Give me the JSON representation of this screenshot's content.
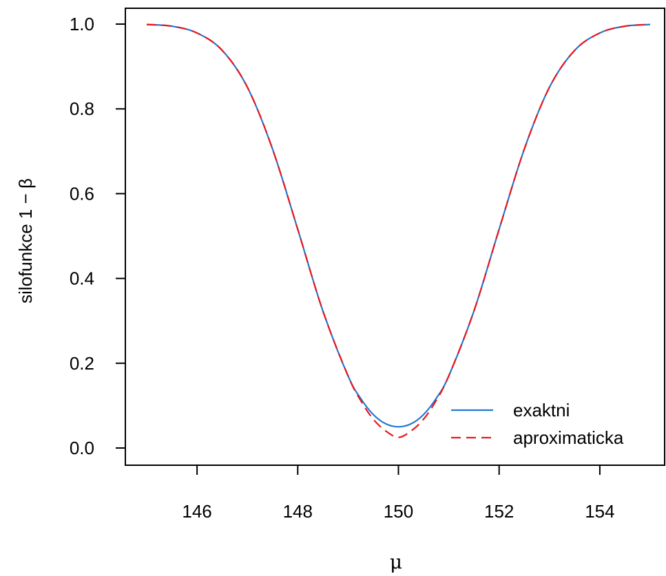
{
  "chart_data": {
    "type": "line",
    "xlabel": "μ",
    "ylabel": "silofunkce 1 − β",
    "xlim": [
      145,
      155
    ],
    "ylim": [
      0,
      1
    ],
    "xticks": [
      "146",
      "148",
      "150",
      "152",
      "154"
    ],
    "yticks": [
      "0.0",
      "0.2",
      "0.4",
      "0.6",
      "0.8",
      "1.0"
    ],
    "grid": false,
    "legend_position": "bottom-right",
    "series": [
      {
        "name": "exaktni",
        "color": "#1f77d4",
        "style": "solid",
        "x": [
          145,
          145.5,
          146,
          146.5,
          147,
          147.5,
          148,
          148.5,
          149,
          149.25,
          149.5,
          149.75,
          150,
          150.25,
          150.5,
          150.75,
          151,
          151.5,
          152,
          152.5,
          153,
          153.5,
          154,
          154.5,
          155
        ],
        "values": [
          0.999,
          0.995,
          0.979,
          0.938,
          0.851,
          0.705,
          0.516,
          0.323,
          0.17,
          0.117,
          0.079,
          0.057,
          0.05,
          0.057,
          0.079,
          0.117,
          0.17,
          0.323,
          0.516,
          0.705,
          0.851,
          0.938,
          0.979,
          0.995,
          0.999
        ]
      },
      {
        "name": "aproximaticka",
        "color": "#e8161b",
        "style": "dashed",
        "x": [
          145,
          145.5,
          146,
          146.5,
          147,
          147.5,
          148,
          148.5,
          149,
          149.25,
          149.5,
          149.75,
          150,
          150.25,
          150.5,
          150.75,
          151,
          151.5,
          152,
          152.5,
          153,
          153.5,
          154,
          154.5,
          155
        ],
        "values": [
          0.999,
          0.995,
          0.979,
          0.938,
          0.851,
          0.705,
          0.516,
          0.323,
          0.17,
          0.112,
          0.068,
          0.04,
          0.025,
          0.04,
          0.068,
          0.112,
          0.17,
          0.323,
          0.516,
          0.705,
          0.851,
          0.938,
          0.979,
          0.995,
          0.999
        ]
      }
    ]
  }
}
